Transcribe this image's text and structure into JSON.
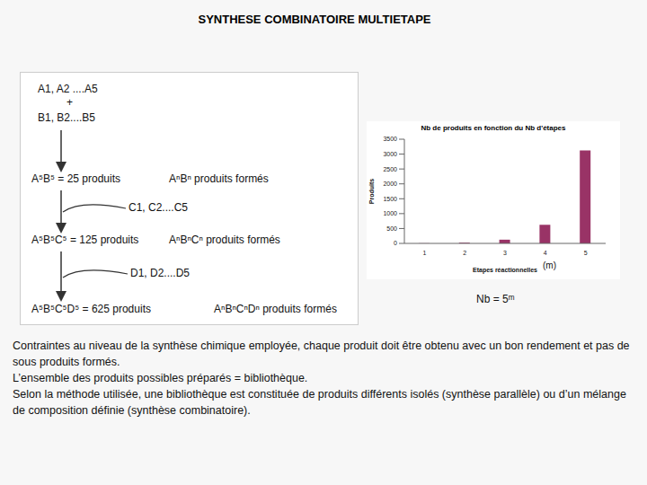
{
  "title": "SYNTHESE COMBINATOIRE MULTIETAPE",
  "diagram": {
    "reagents": [
      "A1, A2 ....A5",
      "+",
      "B1, B2....B5"
    ],
    "steps": [
      {
        "result": "A⁵B⁵ = 25 produits",
        "formula": "AⁿBⁿ produits formés"
      },
      {
        "reagent": "C1, C2....C5",
        "result": "A⁵B⁵C⁵ = 125 produits",
        "formula": "AⁿBⁿCⁿ produits formés"
      },
      {
        "reagent": "D1, D2....D5",
        "result": "A⁵B⁵C⁵D⁵ = 625 produits",
        "formula": "AⁿBⁿCⁿDⁿ produits formés"
      }
    ]
  },
  "chart_data": {
    "type": "bar",
    "title": "Nb de produits en fonction du Nb d'étapes",
    "categories": [
      "1",
      "2",
      "3",
      "4",
      "5"
    ],
    "values": [
      5,
      25,
      125,
      625,
      3125
    ],
    "color": "#993366",
    "xlabel": "Etapes réactionnelles",
    "ylabel": "Produits",
    "ylim": [
      0,
      3500
    ],
    "yticks": [
      0,
      500,
      1000,
      1500,
      2000,
      2500,
      3000,
      3500
    ],
    "grid": false
  },
  "axis_note": "(m)",
  "formula": "Nb = 5ᵐ",
  "paragraphs": [
    "Contraintes au niveau de la synthèse chimique employée, chaque produit doit être obtenu avec un bon rendement et pas de sous produits formés.",
    "L’ensemble des produits possibles préparés = bibliothèque.",
    "Selon la méthode utilisée, une bibliothèque est constituée de produits différents isolés (synthèse parallèle) ou d’un mélange de composition définie (synthèse combinatoire)."
  ]
}
